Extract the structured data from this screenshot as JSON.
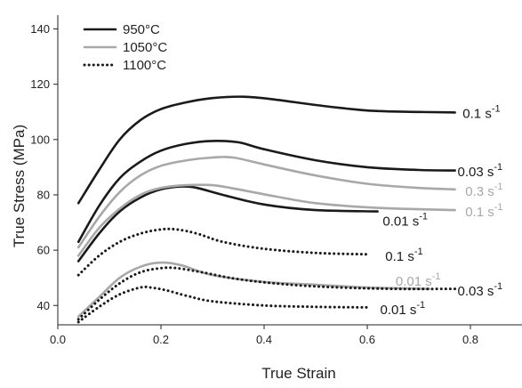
{
  "chart_data": {
    "type": "line",
    "title": "",
    "xlabel": "True Strain",
    "ylabel": "True Stress (MPa)",
    "xlim": [
      0.0,
      0.9
    ],
    "ylim": [
      33,
      145
    ],
    "xticks": [
      "0.0",
      "0.2",
      "0.4",
      "0.6",
      "0.8"
    ],
    "yticks": [
      "40",
      "60",
      "80",
      "100",
      "120",
      "140"
    ],
    "grid": false,
    "legend_position": "top-left",
    "legend": [
      {
        "label": "950°C",
        "style": "solid",
        "color": "#1a1a1a"
      },
      {
        "label": "1050°C",
        "style": "solid",
        "color": "#a8a8a8"
      },
      {
        "label": "1100°C",
        "style": "dotted",
        "color": "#1a1a1a"
      }
    ],
    "series": [
      {
        "group": "950°C",
        "label": "0.1 s-1",
        "color": "#1a1a1a",
        "style": "solid",
        "x": [
          0.04,
          0.08,
          0.12,
          0.16,
          0.2,
          0.25,
          0.3,
          0.36,
          0.42,
          0.5,
          0.6,
          0.7,
          0.77
        ],
        "y": [
          77,
          89,
          100,
          107,
          111,
          113.5,
          115,
          115.5,
          114.5,
          112.5,
          110.5,
          110,
          109.8
        ]
      },
      {
        "group": "950°C",
        "label": "0.03 s-1",
        "color": "#1a1a1a",
        "style": "solid",
        "x": [
          0.04,
          0.08,
          0.12,
          0.16,
          0.2,
          0.25,
          0.3,
          0.35,
          0.4,
          0.5,
          0.6,
          0.7,
          0.77
        ],
        "y": [
          63,
          76,
          86,
          92,
          96,
          98.5,
          99.5,
          99,
          96.5,
          92.5,
          90,
          89,
          88.8
        ]
      },
      {
        "group": "950°C",
        "label": "0.01 s-1",
        "color": "#1a1a1a",
        "style": "solid",
        "x": [
          0.04,
          0.08,
          0.12,
          0.16,
          0.2,
          0.24,
          0.27,
          0.32,
          0.4,
          0.5,
          0.62
        ],
        "y": [
          56,
          66,
          74,
          79,
          82,
          83,
          82.5,
          80,
          76.5,
          74.5,
          74
        ]
      },
      {
        "group": "1050°C",
        "label": "0.3 s-1",
        "color": "#a8a8a8",
        "style": "solid",
        "x": [
          0.04,
          0.08,
          0.12,
          0.16,
          0.2,
          0.25,
          0.3,
          0.34,
          0.4,
          0.5,
          0.6,
          0.7,
          0.77
        ],
        "y": [
          61,
          72,
          81,
          87,
          90.5,
          92.5,
          93.5,
          93.5,
          91,
          87,
          84,
          82.5,
          82
        ]
      },
      {
        "group": "1050°C",
        "label": "0.1 s-1",
        "color": "#a8a8a8",
        "style": "solid",
        "x": [
          0.04,
          0.08,
          0.12,
          0.16,
          0.2,
          0.25,
          0.3,
          0.35,
          0.42,
          0.5,
          0.6,
          0.7,
          0.77
        ],
        "y": [
          58,
          68,
          75,
          80,
          82.5,
          83.5,
          83.5,
          82,
          79.5,
          77,
          75.5,
          74.8,
          74.5
        ]
      },
      {
        "group": "1050°C",
        "label": "0.01 s-1",
        "color": "#a8a8a8",
        "style": "solid",
        "x": [
          0.04,
          0.08,
          0.12,
          0.16,
          0.2,
          0.24,
          0.3,
          0.4,
          0.5,
          0.6,
          0.72
        ],
        "y": [
          36,
          43,
          50,
          54,
          55.5,
          54.5,
          51,
          48.5,
          47.5,
          46.5,
          46
        ]
      },
      {
        "group": "1100°C",
        "label": "0.1 s-1",
        "color": "#1a1a1a",
        "style": "dotted",
        "x": [
          0.04,
          0.08,
          0.12,
          0.16,
          0.2,
          0.23,
          0.27,
          0.32,
          0.4,
          0.5,
          0.6
        ],
        "y": [
          51,
          58,
          63,
          66,
          67.5,
          67.5,
          66,
          63,
          60.5,
          59,
          58.5
        ]
      },
      {
        "group": "1100°C",
        "label": "0.03 s-1",
        "color": "#1a1a1a",
        "style": "dotted",
        "x": [
          0.04,
          0.08,
          0.12,
          0.16,
          0.2,
          0.23,
          0.28,
          0.35,
          0.45,
          0.55,
          0.65,
          0.77
        ],
        "y": [
          35,
          42,
          48,
          52,
          53.5,
          53.5,
          52,
          49.5,
          47.5,
          46.5,
          46,
          46
        ]
      },
      {
        "group": "1100°C",
        "label": "0.01 s-1",
        "color": "#1a1a1a",
        "style": "dotted",
        "x": [
          0.04,
          0.08,
          0.12,
          0.16,
          0.18,
          0.21,
          0.25,
          0.3,
          0.4,
          0.5,
          0.6
        ],
        "y": [
          34,
          39.5,
          44,
          46.5,
          46.5,
          45.5,
          43.5,
          41.5,
          40,
          39.5,
          39.3
        ]
      }
    ],
    "curve_labels": [
      {
        "series": 0,
        "base": "0.1 s",
        "exp": "-1",
        "color": "#1a1a1a",
        "x": 0.785,
        "y": 109.5
      },
      {
        "series": 1,
        "base": "0.03 s",
        "exp": "-1",
        "color": "#1a1a1a",
        "x": 0.775,
        "y": 88.3
      },
      {
        "series": 3,
        "base": "0.3 s",
        "exp": "-1",
        "color": "#a8a8a8",
        "x": 0.79,
        "y": 81.3
      },
      {
        "series": 4,
        "base": "0.1 s",
        "exp": "-1",
        "color": "#a8a8a8",
        "x": 0.79,
        "y": 73.8
      },
      {
        "series": 2,
        "base": "0.01 s",
        "exp": "-1",
        "color": "#1a1a1a",
        "x": 0.63,
        "y": 70.5
      },
      {
        "series": 6,
        "base": "0.1 s",
        "exp": "-1",
        "color": "#1a1a1a",
        "x": 0.635,
        "y": 57.8
      },
      {
        "series": 5,
        "base": "0.01 s",
        "exp": "-1",
        "color": "#a8a8a8",
        "x": 0.655,
        "y": 48.7
      },
      {
        "series": 7,
        "base": "0.03 s",
        "exp": "-1",
        "color": "#1a1a1a",
        "x": 0.775,
        "y": 45.3
      },
      {
        "series": 8,
        "base": "0.01 s",
        "exp": "-1",
        "color": "#1a1a1a",
        "x": 0.625,
        "y": 38.5
      }
    ]
  }
}
